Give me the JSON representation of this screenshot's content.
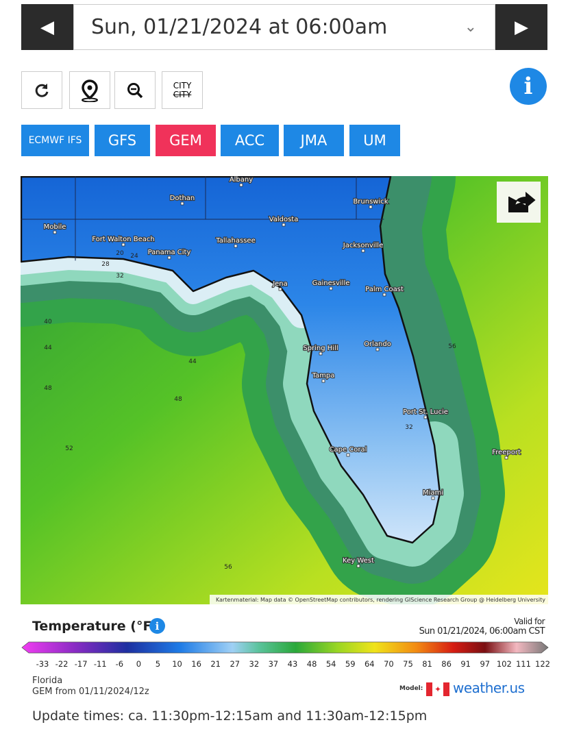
{
  "header": {
    "date": "Sun, 01/21/2024 at 06:00am"
  },
  "tools": {
    "city": "CITY",
    "city_struck": "CITY"
  },
  "models": [
    {
      "label": "ECMWF IFS",
      "selected": false
    },
    {
      "label": "GFS",
      "selected": false
    },
    {
      "label": "GEM",
      "selected": true
    },
    {
      "label": "ACC",
      "selected": false
    },
    {
      "label": "JMA",
      "selected": false
    },
    {
      "label": "UM",
      "selected": false
    }
  ],
  "map": {
    "cities": [
      "Albany",
      "Dothan",
      "Brunswick",
      "Valdosta",
      "Mobile",
      "Fort Walton Beach",
      "Tallahassee",
      "Panama City",
      "Jacksonville",
      "Jena",
      "Gainesville",
      "Palm Coast",
      "Spring Hill",
      "Orlando",
      "Tampa",
      "Port St. Lucie",
      "Cape Coral",
      "Miami",
      "Freeport",
      "Key West"
    ],
    "contours": [
      20,
      24,
      28,
      32,
      40,
      44,
      48,
      52,
      44,
      48,
      56,
      56,
      32
    ],
    "attribution": "Kartenmaterial: Map data © OpenStreetMap contributors, rendering GIScience Research Group @ Heidelberg University"
  },
  "legend": {
    "title": "Temperature (°F)",
    "valid_label": "Valid for",
    "valid_time": "Sun 01/21/2024, 06:00am CST",
    "ticks": [
      -33,
      -22,
      -17,
      -11,
      -6,
      0,
      5,
      10,
      16,
      21,
      27,
      32,
      37,
      43,
      48,
      54,
      59,
      64,
      70,
      75,
      81,
      86,
      91,
      97,
      102,
      111,
      122
    ]
  },
  "footer": {
    "region": "Florida",
    "run": "GEM from 01/11/2024/12z",
    "model_label": "Model:",
    "brand": "weather.us",
    "update_times": "Update times: ca. 11:30pm-12:15am and 11:30am-12:15pm"
  }
}
